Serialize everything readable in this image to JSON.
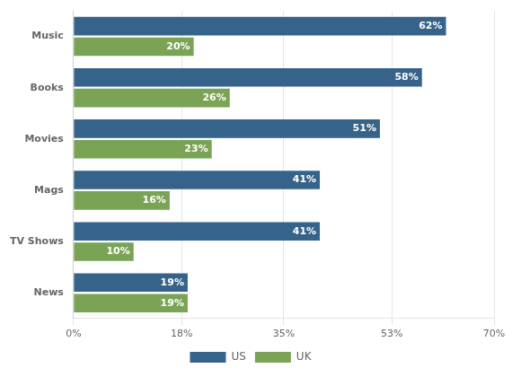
{
  "chart_data": {
    "type": "bar",
    "orientation": "horizontal",
    "categories": [
      "Music",
      "Books",
      "Movies",
      "Mags",
      "TV Shows",
      "News"
    ],
    "series": [
      {
        "name": "US",
        "color": "#35638A",
        "values": [
          62,
          58,
          51,
          41,
          41,
          19
        ],
        "value_labels": [
          "62%",
          "58%",
          "51%",
          "41%",
          "41%",
          "19%"
        ]
      },
      {
        "name": "UK",
        "color": "#7AA355",
        "values": [
          20,
          26,
          23,
          16,
          10,
          19
        ],
        "value_labels": [
          "20%",
          "26%",
          "23%",
          "16%",
          "10%",
          "19%"
        ]
      }
    ],
    "xlim": [
      0,
      70
    ],
    "xticks": [
      {
        "value": 0,
        "label": "0%"
      },
      {
        "value": 18,
        "label": "18%"
      },
      {
        "value": 35,
        "label": "35%"
      },
      {
        "value": 53,
        "label": "53%"
      },
      {
        "value": 70,
        "label": "70%"
      }
    ],
    "grid": "x",
    "data_labels": true,
    "legend": "bottom"
  }
}
